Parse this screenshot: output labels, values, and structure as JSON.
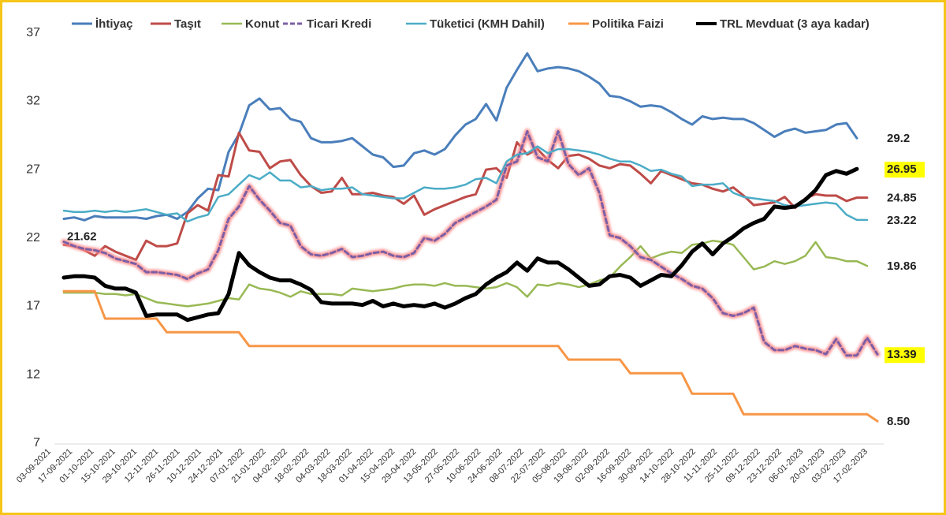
{
  "chart_data": {
    "type": "line",
    "title": "",
    "xlabel": "",
    "ylabel": "",
    "ylim": [
      7,
      37
    ],
    "yticks": [
      "7",
      "12",
      "17",
      "22",
      "27",
      "32",
      "37"
    ],
    "grid": false,
    "legend_position": "top",
    "x_tick_labels": [
      "03-09-2021",
      "17-09-2021",
      "01-10-2021",
      "15-10-2021",
      "29-10-2021",
      "12-11-2021",
      "26-11-2021",
      "10-12-2021",
      "24-12-2021",
      "07-01-2022",
      "21-01-2022",
      "04-02-2022",
      "18-02-2022",
      "04-03-2022",
      "18-03-2022",
      "01-04-2022",
      "15-04-2022",
      "29-04-2022",
      "13-05-2022",
      "27-05-2022",
      "10-06-2022",
      "24-06-2022",
      "08-07-2022",
      "22-07-2022",
      "05-08-2022",
      "19-08-2022",
      "02-09-2022",
      "16-09-2022",
      "30-09-2022",
      "14-10-2022",
      "28-10-2022",
      "11-11-2022",
      "25-11-2022",
      "09-12-2022",
      "23-12-2022",
      "06-01-2023",
      "20-01-2023",
      "03-02-2023",
      "17-02-2023"
    ],
    "series": [
      {
        "name": "İhtiyaç",
        "color": "#4a7ebb",
        "width": 3,
        "dash": false,
        "glow": false,
        "values": [
          23.3,
          23.4,
          23.2,
          23.5,
          23.4,
          23.4,
          23.4,
          23.4,
          23.3,
          23.5,
          23.6,
          23.3,
          23.8,
          24.8,
          25.5,
          25.4,
          28.2,
          29.5,
          31.6,
          32.1,
          31.3,
          31.4,
          30.6,
          30.4,
          29.2,
          28.9,
          28.9,
          29.0,
          29.2,
          28.6,
          28.0,
          27.8,
          27.1,
          27.2,
          28.1,
          28.3,
          28.0,
          28.4,
          29.4,
          30.2,
          30.6,
          31.7,
          30.5,
          32.9,
          34.2,
          35.4,
          34.1,
          34.3,
          34.4,
          34.3,
          34.1,
          33.7,
          33.2,
          32.3,
          32.2,
          31.9,
          31.5,
          31.6,
          31.5,
          31.1,
          30.6,
          30.2,
          30.8,
          30.6,
          30.7,
          30.6,
          30.6,
          30.3,
          29.8,
          29.3,
          29.7,
          29.9,
          29.6,
          29.7,
          29.8,
          30.2,
          30.3,
          29.2
        ]
      },
      {
        "name": "Taşıt",
        "color": "#be4b48",
        "width": 3,
        "dash": false,
        "glow": false,
        "values": [
          21.4,
          21.3,
          21.0,
          20.6,
          21.3,
          20.9,
          20.6,
          20.3,
          21.7,
          21.3,
          21.3,
          21.5,
          23.7,
          24.3,
          23.9,
          26.5,
          26.4,
          29.6,
          28.3,
          28.2,
          27.0,
          27.5,
          27.6,
          26.5,
          25.7,
          25.2,
          25.3,
          26.3,
          25.1,
          25.1,
          25.2,
          25.0,
          24.9,
          24.4,
          25.0,
          23.6,
          24.0,
          24.3,
          24.6,
          24.9,
          25.1,
          26.9,
          27.0,
          26.3,
          28.9,
          28.0,
          28.4,
          27.6,
          27.0,
          27.9,
          28.0,
          27.7,
          27.2,
          27.0,
          27.3,
          27.2,
          26.6,
          25.9,
          26.8,
          26.5,
          26.2,
          25.9,
          25.8,
          25.5,
          25.3,
          25.6,
          25.0,
          24.3,
          24.4,
          24.5,
          24.9,
          24.1,
          24.8,
          25.1,
          25.0,
          25.0,
          24.6,
          24.85,
          24.85
        ]
      },
      {
        "name": "Konut",
        "color": "#98b954",
        "width": 2.5,
        "dash": false,
        "glow": false,
        "values": [
          17.9,
          17.9,
          17.9,
          17.9,
          17.8,
          17.8,
          17.7,
          17.8,
          17.5,
          17.2,
          17.1,
          17.0,
          16.9,
          17.0,
          17.1,
          17.3,
          17.5,
          17.4,
          18.5,
          18.2,
          18.1,
          17.9,
          17.6,
          18.0,
          17.8,
          17.8,
          17.8,
          17.7,
          18.2,
          18.1,
          18.0,
          18.1,
          18.2,
          18.4,
          18.5,
          18.5,
          18.4,
          18.6,
          18.4,
          18.4,
          18.3,
          18.2,
          18.3,
          18.6,
          18.3,
          17.6,
          18.5,
          18.4,
          18.6,
          18.5,
          18.3,
          18.5,
          18.8,
          19.0,
          19.8,
          20.5,
          21.3,
          20.4,
          20.7,
          20.9,
          20.8,
          21.4,
          21.5,
          21.7,
          21.6,
          21.4,
          20.5,
          19.6,
          19.8,
          20.2,
          20.0,
          20.2,
          20.6,
          21.6,
          20.5,
          20.4,
          20.2,
          20.2,
          19.86
        ]
      },
      {
        "name": "Ticari Kredi",
        "color": "#7b5fa6",
        "width": 3,
        "dash": true,
        "glow": true,
        "values": [
          21.62,
          21.3,
          21.1,
          21.0,
          20.8,
          20.4,
          20.2,
          20.0,
          19.4,
          19.4,
          19.3,
          19.2,
          18.9,
          19.3,
          19.6,
          21.0,
          23.3,
          24.2,
          25.7,
          24.7,
          23.9,
          23.0,
          22.8,
          21.3,
          20.7,
          20.6,
          20.8,
          21.1,
          20.5,
          20.6,
          20.8,
          20.9,
          20.6,
          20.5,
          20.8,
          21.9,
          21.7,
          22.2,
          23.0,
          23.4,
          23.8,
          24.2,
          24.7,
          27.2,
          27.5,
          29.7,
          27.8,
          27.5,
          29.7,
          27.3,
          26.5,
          27.0,
          25.2,
          22.1,
          21.9,
          21.3,
          20.5,
          20.3,
          19.8,
          19.3,
          18.9,
          18.4,
          18.2,
          17.5,
          16.4,
          16.2,
          16.4,
          16.8,
          14.3,
          13.7,
          13.7,
          14.0,
          13.8,
          13.7,
          13.4,
          14.5,
          13.3,
          13.3,
          14.6,
          13.39
        ]
      },
      {
        "name": "Tüketici (KMH Dahil)",
        "color": "#4bacc6",
        "width": 2.5,
        "dash": false,
        "glow": false,
        "values": [
          23.9,
          23.8,
          23.8,
          23.9,
          23.8,
          23.9,
          23.8,
          23.9,
          24.0,
          23.8,
          23.6,
          23.7,
          23.1,
          23.4,
          23.6,
          24.9,
          25.1,
          25.8,
          26.5,
          26.2,
          26.7,
          26.1,
          26.1,
          25.6,
          25.7,
          25.4,
          25.5,
          25.5,
          25.6,
          25.1,
          25.0,
          24.9,
          24.8,
          24.8,
          25.2,
          25.6,
          25.5,
          25.5,
          25.6,
          25.8,
          26.2,
          26.3,
          25.9,
          27.5,
          28.0,
          28.1,
          28.6,
          28.1,
          28.4,
          28.4,
          28.3,
          28.2,
          28.0,
          27.7,
          27.5,
          27.5,
          27.2,
          26.8,
          26.9,
          26.6,
          26.4,
          25.7,
          25.8,
          25.8,
          25.9,
          25.2,
          24.9,
          24.8,
          24.7,
          24.6,
          24.3,
          24.2,
          24.3,
          24.4,
          24.5,
          24.4,
          23.6,
          23.22,
          23.22
        ]
      },
      {
        "name": "Politika Faizi",
        "color": "#f79646",
        "width": 3,
        "dash": false,
        "glow": false,
        "values": [
          18.0,
          18.0,
          18.0,
          18.0,
          16.0,
          16.0,
          16.0,
          16.0,
          16.0,
          16.0,
          15.0,
          15.0,
          15.0,
          15.0,
          15.0,
          15.0,
          15.0,
          15.0,
          14.0,
          14.0,
          14.0,
          14.0,
          14.0,
          14.0,
          14.0,
          14.0,
          14.0,
          14.0,
          14.0,
          14.0,
          14.0,
          14.0,
          14.0,
          14.0,
          14.0,
          14.0,
          14.0,
          14.0,
          14.0,
          14.0,
          14.0,
          14.0,
          14.0,
          14.0,
          14.0,
          14.0,
          14.0,
          14.0,
          14.0,
          13.0,
          13.0,
          13.0,
          13.0,
          13.0,
          13.0,
          12.0,
          12.0,
          12.0,
          12.0,
          12.0,
          12.0,
          10.5,
          10.5,
          10.5,
          10.5,
          10.5,
          9.0,
          9.0,
          9.0,
          9.0,
          9.0,
          9.0,
          9.0,
          9.0,
          9.0,
          9.0,
          9.0,
          9.0,
          9.0,
          8.5
        ]
      },
      {
        "name": "TRL Mevduat (3 aya kadar)",
        "color": "#000000",
        "width": 5,
        "dash": false,
        "glow": false,
        "values": [
          19.0,
          19.1,
          19.1,
          19.0,
          18.4,
          18.2,
          18.2,
          17.9,
          16.2,
          16.3,
          16.3,
          16.3,
          15.9,
          16.1,
          16.3,
          16.4,
          17.8,
          20.8,
          19.9,
          19.4,
          19.0,
          18.8,
          18.8,
          18.5,
          18.1,
          17.2,
          17.1,
          17.1,
          17.1,
          17.0,
          17.3,
          16.9,
          17.1,
          16.9,
          17.0,
          16.9,
          17.1,
          16.8,
          17.1,
          17.5,
          17.8,
          18.5,
          19.0,
          19.4,
          20.1,
          19.5,
          20.4,
          20.1,
          20.1,
          19.6,
          19.0,
          18.4,
          18.5,
          19.1,
          19.2,
          19.0,
          18.4,
          18.8,
          19.2,
          19.1,
          19.9,
          20.9,
          21.5,
          20.7,
          21.5,
          22.0,
          22.6,
          23.0,
          23.3,
          24.2,
          24.1,
          24.2,
          24.7,
          25.4,
          26.5,
          26.8,
          26.6,
          26.95
        ]
      }
    ],
    "annotations": [
      {
        "text": "21.62",
        "series": "Ticari Kredi",
        "position": "start",
        "highlight": false
      },
      {
        "text": "29.2",
        "series": "İhtiyaç",
        "position": "end",
        "highlight": false
      },
      {
        "text": "26.95",
        "series": "TRL Mevduat (3 aya kadar)",
        "position": "end",
        "highlight": true
      },
      {
        "text": "24.85",
        "series": "Taşıt",
        "position": "end",
        "highlight": false
      },
      {
        "text": "23.22",
        "series": "Tüketici (KMH Dahil)",
        "position": "end",
        "highlight": false
      },
      {
        "text": "19.86",
        "series": "Konut",
        "position": "end",
        "highlight": false
      },
      {
        "text": "13.39",
        "series": "Ticari Kredi",
        "position": "end",
        "highlight": true
      },
      {
        "text": "8.50",
        "series": "Politika Faizi",
        "position": "end",
        "highlight": false
      }
    ],
    "highlight_color": "#ffff00",
    "frame_color": "#f5c518"
  }
}
